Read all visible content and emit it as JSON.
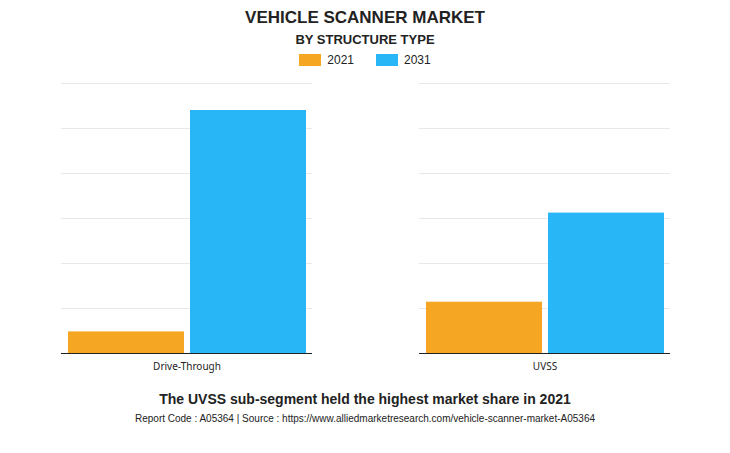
{
  "chart_data": {
    "type": "bar",
    "title": "VEHICLE SCANNER MARKET",
    "subtitle": "BY STRUCTURE TYPE",
    "categories": [
      "Drive-Through",
      "UVSS"
    ],
    "series": [
      {
        "name": "2021",
        "color": "#F5A623",
        "values": [
          0.08,
          0.19
        ]
      },
      {
        "name": "2031",
        "color": "#29B6F6",
        "values": [
          0.9,
          0.52
        ]
      }
    ],
    "ylim": [
      0,
      1.0
    ],
    "yticks": [
      0,
      0.16666666666666666,
      0.3333333333333333,
      0.5,
      0.6666666666666666,
      0.8333333333333334,
      1.0
    ],
    "grid": true,
    "legend": "top",
    "tick_labels": "x",
    "annotation": "The UVSS sub-segment held the highest market share in 2021",
    "source": "Report Code : A05364  |  Source : https://www.alliedmarketresearch.com/vehicle-scanner-market-A05364"
  }
}
